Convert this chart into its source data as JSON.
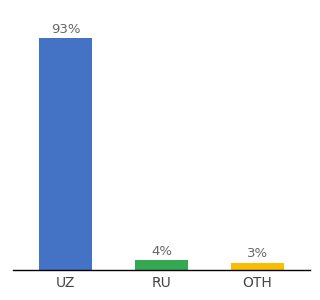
{
  "categories": [
    "UZ",
    "RU",
    "OTH"
  ],
  "values": [
    93,
    4,
    3
  ],
  "bar_colors": [
    "#4472c4",
    "#34a853",
    "#fbbc04"
  ],
  "labels": [
    "93%",
    "4%",
    "3%"
  ],
  "background_color": "#ffffff",
  "ylim": [
    0,
    100
  ],
  "label_fontsize": 9.5,
  "tick_fontsize": 10,
  "bar_width": 0.55
}
